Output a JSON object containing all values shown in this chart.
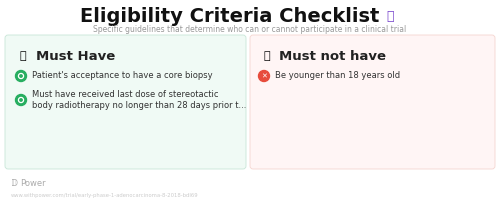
{
  "title": "Eligibility Criteria Checklist",
  "subtitle": "Specific guidelines that determine who can or cannot participate in a clinical trial",
  "bg_color": "#ffffff",
  "left_box_color": "#f0faf5",
  "right_box_color": "#fff5f5",
  "left_header": "Must Have",
  "right_header": "Must not have",
  "left_items": [
    "Patient's acceptance to have a core biopsy",
    "Must have received last dose of stereotactic\nbody radiotherapy no longer than 28 days prior t..."
  ],
  "right_items": [
    "Be younger than 18 years old"
  ],
  "left_item_icon_color": "#27ae60",
  "right_item_icon_color": "#e74c3c",
  "left_header_icon_color": "#e6a817",
  "right_header_icon_color": "#e6a817",
  "footer_text": "Power",
  "url_text": "www.withpower.com/trial/early-phase-1-adenocarcinoma-8-2018-bdl69",
  "title_color": "#111111",
  "subtitle_color": "#999999",
  "header_text_color": "#222222",
  "item_text_color": "#333333",
  "footer_color": "#aaaaaa",
  "url_color": "#cccccc",
  "left_box_border": "#c8e6d8",
  "right_box_border": "#f5d5d0",
  "clipboard_icon_color": "#7744cc"
}
